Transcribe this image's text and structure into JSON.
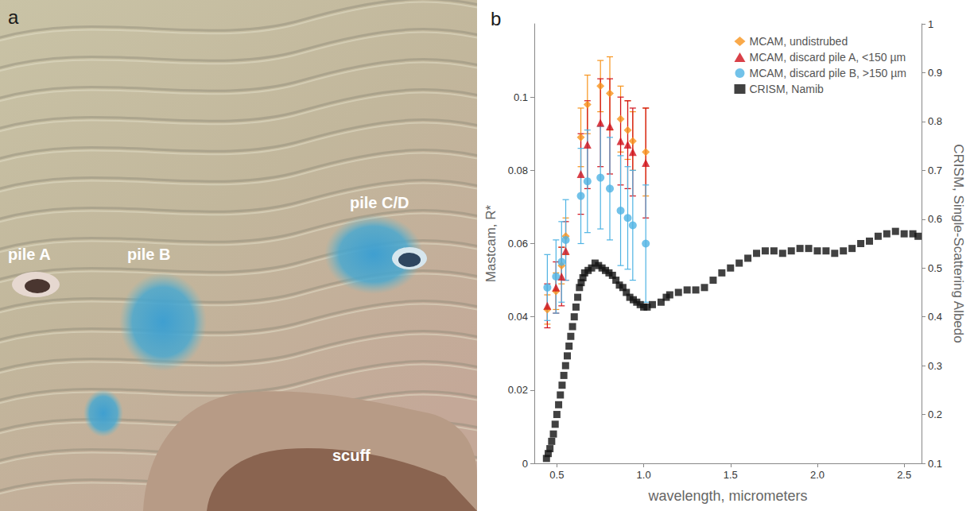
{
  "image_panel": {
    "panel_label": "a",
    "labels": [
      "pile A",
      "pile B",
      "pile C/D",
      "scuff"
    ]
  },
  "chart_data": {
    "type": "scatter",
    "panel_label": "b",
    "x_label": "wavelength, micrometers",
    "y_label": "Mastcam, R*",
    "y2_label": "CRISM, Single-Scattering Albedo",
    "xlim": [
      0.37,
      2.6
    ],
    "xticks": [
      0.5,
      {
        "value": 1,
        "label": "1.0"
      },
      1.5,
      {
        "value": 2,
        "label": "2.0"
      },
      2.5
    ],
    "ylim": [
      0,
      0.12
    ],
    "yticks": [
      0,
      0.02,
      0.04,
      0.06,
      0.08,
      0.1
    ],
    "y2lim": [
      0.1,
      1
    ],
    "y2ticks": [
      0.1,
      0.2,
      0.3,
      0.4,
      0.5,
      0.6,
      0.7,
      0.8,
      0.9,
      1
    ],
    "grid": false,
    "legend": "top-right",
    "series": [
      {
        "name": "MCAM, undistrubed",
        "color": "#f7941d",
        "marker": "diamond",
        "x": [
          0.445,
          0.495,
          0.527,
          0.551,
          0.638,
          0.676,
          0.751,
          0.805,
          0.867,
          0.908,
          0.937,
          1.012
        ],
        "values": [
          0.042,
          0.047,
          0.054,
          0.062,
          0.089,
          0.098,
          0.103,
          0.101,
          0.094,
          0.091,
          0.088,
          0.085
        ],
        "errors": [
          0.004,
          0.005,
          0.005,
          0.005,
          0.008,
          0.008,
          0.007,
          0.01,
          0.009,
          0.008,
          0.008,
          0.012
        ]
      },
      {
        "name": "MCAM, discard pile A, <150 µm",
        "color": "#d0101a",
        "marker": "triangle",
        "x": [
          0.445,
          0.495,
          0.527,
          0.551,
          0.638,
          0.676,
          0.751,
          0.805,
          0.867,
          0.908,
          0.937,
          1.012
        ],
        "values": [
          0.043,
          0.048,
          0.051,
          0.058,
          0.079,
          0.087,
          0.093,
          0.092,
          0.088,
          0.087,
          0.085,
          0.082
        ],
        "errors": [
          0.006,
          0.007,
          0.008,
          0.008,
          0.011,
          0.012,
          0.012,
          0.013,
          0.012,
          0.012,
          0.012,
          0.015
        ]
      },
      {
        "name": "MCAM, discard pile B, >150 µm",
        "color": "#4fb3e3",
        "marker": "circle",
        "x": [
          0.445,
          0.495,
          0.527,
          0.551,
          0.638,
          0.676,
          0.751,
          0.805,
          0.867,
          0.908,
          0.937,
          1.012
        ],
        "values": [
          0.048,
          0.051,
          0.055,
          0.061,
          0.073,
          0.077,
          0.078,
          0.075,
          0.069,
          0.067,
          0.065,
          0.06
        ],
        "errors": [
          0.009,
          0.01,
          0.011,
          0.011,
          0.013,
          0.014,
          0.014,
          0.014,
          0.015,
          0.014,
          0.015,
          0.016
        ]
      },
      {
        "name": "CRISM, Namib",
        "color": "#111111",
        "marker": "square",
        "axis": "y2",
        "x": [
          0.44,
          0.45,
          0.46,
          0.47,
          0.48,
          0.49,
          0.5,
          0.51,
          0.52,
          0.53,
          0.54,
          0.55,
          0.56,
          0.57,
          0.58,
          0.59,
          0.6,
          0.61,
          0.62,
          0.63,
          0.64,
          0.65,
          0.66,
          0.68,
          0.7,
          0.72,
          0.74,
          0.76,
          0.78,
          0.8,
          0.82,
          0.84,
          0.86,
          0.88,
          0.9,
          0.92,
          0.94,
          0.96,
          0.98,
          1.0,
          1.02,
          1.05,
          1.1,
          1.13,
          1.15,
          1.2,
          1.25,
          1.3,
          1.35,
          1.4,
          1.45,
          1.5,
          1.55,
          1.6,
          1.65,
          1.7,
          1.75,
          1.8,
          1.85,
          1.9,
          1.95,
          2.0,
          2.05,
          2.1,
          2.15,
          2.2,
          2.25,
          2.3,
          2.35,
          2.4,
          2.45,
          2.5,
          2.55,
          2.58
        ],
        "values": [
          0.11,
          0.12,
          0.13,
          0.145,
          0.16,
          0.18,
          0.2,
          0.22,
          0.24,
          0.26,
          0.28,
          0.3,
          0.32,
          0.34,
          0.36,
          0.38,
          0.4,
          0.42,
          0.44,
          0.46,
          0.47,
          0.48,
          0.49,
          0.495,
          0.5,
          0.51,
          0.505,
          0.5,
          0.495,
          0.49,
          0.485,
          0.475,
          0.465,
          0.46,
          0.45,
          0.44,
          0.435,
          0.43,
          0.425,
          0.42,
          0.42,
          0.425,
          0.43,
          0.44,
          0.445,
          0.45,
          0.455,
          0.455,
          0.46,
          0.475,
          0.49,
          0.5,
          0.51,
          0.52,
          0.53,
          0.535,
          0.535,
          0.53,
          0.535,
          0.54,
          0.54,
          0.535,
          0.535,
          0.53,
          0.535,
          0.54,
          0.55,
          0.555,
          0.565,
          0.57,
          0.575,
          0.57,
          0.57,
          0.565
        ]
      }
    ]
  }
}
